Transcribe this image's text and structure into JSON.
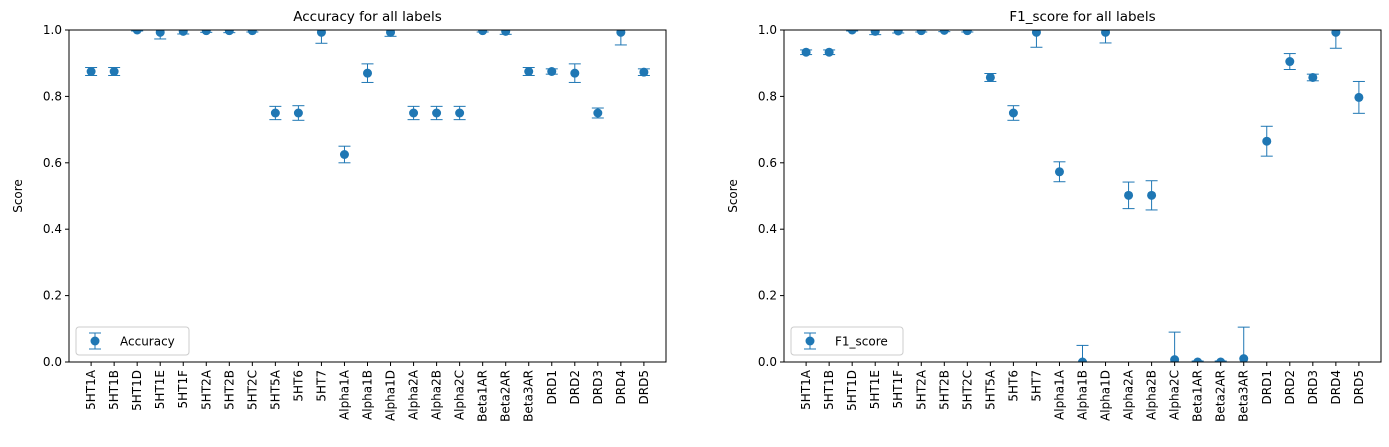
{
  "chart_data": [
    {
      "type": "scatter",
      "title": "Accuracy for all labels",
      "xlabel": "",
      "ylabel": "Score",
      "ylim": [
        0,
        1
      ],
      "yticks": [
        "0.0",
        "0.2",
        "0.4",
        "0.6",
        "0.8",
        "1.0"
      ],
      "grid": false,
      "legend": "lower-left",
      "categories": [
        "5HT1A",
        "5HT1B",
        "5HT1D",
        "5HT1E",
        "5HT1F",
        "5HT2A",
        "5HT2B",
        "5HT2C",
        "5HT5A",
        "5HT6",
        "5HT7",
        "Alpha1A",
        "Alpha1B",
        "Alpha1D",
        "Alpha2A",
        "Alpha2B",
        "Alpha2C",
        "Beta1AR",
        "Beta2AR",
        "Beta3AR",
        "DRD1",
        "DRD2",
        "DRD3",
        "DRD4",
        "DRD5"
      ],
      "series": [
        {
          "name": "Accuracy",
          "color": "#1f77b4",
          "values": [
            0.875,
            0.875,
            1.0,
            0.993,
            0.996,
            0.998,
            0.998,
            0.998,
            0.75,
            0.75,
            0.993,
            0.625,
            0.87,
            0.993,
            0.75,
            0.75,
            0.75,
            0.998,
            0.996,
            0.875,
            0.875,
            0.87,
            0.75,
            0.993,
            0.873
          ],
          "errors": [
            0.012,
            0.012,
            0.003,
            0.02,
            0.008,
            0.005,
            0.006,
            0.004,
            0.02,
            0.022,
            0.033,
            0.025,
            0.028,
            0.012,
            0.02,
            0.02,
            0.02,
            0.004,
            0.009,
            0.012,
            0.008,
            0.028,
            0.015,
            0.038,
            0.01
          ]
        }
      ]
    },
    {
      "type": "scatter",
      "title": "F1_score for all labels",
      "xlabel": "",
      "ylabel": "Score",
      "ylim": [
        0,
        1
      ],
      "yticks": [
        "0.0",
        "0.2",
        "0.4",
        "0.6",
        "0.8",
        "1.0"
      ],
      "grid": false,
      "legend": "lower-left",
      "categories": [
        "5HT1A",
        "5HT1B",
        "5HT1D",
        "5HT1E",
        "5HT1F",
        "5HT2A",
        "5HT2B",
        "5HT2C",
        "5HT5A",
        "5HT6",
        "5HT7",
        "Alpha1A",
        "Alpha1B",
        "Alpha1D",
        "Alpha2A",
        "Alpha2B",
        "Alpha2C",
        "Beta1AR",
        "Beta2AR",
        "Beta3AR",
        "DRD1",
        "DRD2",
        "DRD3",
        "DRD4",
        "DRD5"
      ],
      "series": [
        {
          "name": "F1_score",
          "color": "#1f77b4",
          "values": [
            0.933,
            0.933,
            1.0,
            0.996,
            0.997,
            0.998,
            0.999,
            0.998,
            0.857,
            0.75,
            0.993,
            0.573,
            0.0,
            0.993,
            0.502,
            0.502,
            0.007,
            0.0,
            0.0,
            0.01,
            0.665,
            0.905,
            0.857,
            0.993,
            0.797
          ],
          "errors": [
            0.007,
            0.007,
            0.003,
            0.01,
            0.006,
            0.004,
            0.004,
            0.004,
            0.012,
            0.022,
            0.045,
            0.03,
            0.05,
            0.032,
            0.04,
            0.044,
            0.083,
            0.003,
            0.003,
            0.095,
            0.045,
            0.024,
            0.01,
            0.048,
            0.048
          ]
        }
      ]
    }
  ]
}
